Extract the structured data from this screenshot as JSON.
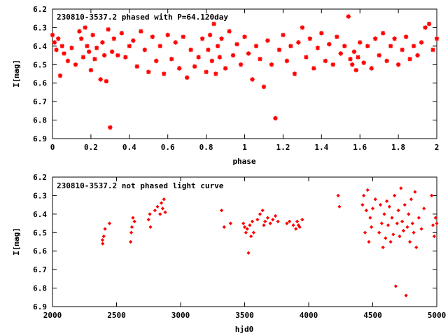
{
  "colors": {
    "points": "#ff0000",
    "frame": "#000000",
    "background": "#ffffff"
  },
  "chart_data": [
    {
      "type": "scatter",
      "title": "230810-3537.2 phased with P=64.120day",
      "xlabel": "phase",
      "ylabel": "I[mag]",
      "xlim": [
        0,
        2
      ],
      "ylim": [
        6.2,
        6.9
      ],
      "y_inverted": true,
      "grid": false,
      "marker": "asterisk",
      "x_ticks": [
        "0",
        "0.2",
        "0.4",
        "0.6",
        "0.8",
        "1",
        "1.2",
        "1.4",
        "1.6",
        "1.8",
        "2"
      ],
      "y_ticks": [
        "6.2",
        "6.3",
        "6.4",
        "6.5",
        "6.6",
        "6.7",
        "6.8",
        "6.9"
      ],
      "series": [
        {
          "color": "#ff0000",
          "points": [
            [
              0.0,
              6.34
            ],
            [
              0.01,
              6.38
            ],
            [
              0.02,
              6.42
            ],
            [
              0.03,
              6.36
            ],
            [
              0.04,
              6.56
            ],
            [
              0.05,
              6.4
            ],
            [
              0.06,
              6.44
            ],
            [
              0.08,
              6.48
            ],
            [
              0.1,
              6.41
            ],
            [
              0.12,
              6.5
            ],
            [
              0.14,
              6.32
            ],
            [
              0.15,
              6.36
            ],
            [
              0.16,
              6.46
            ],
            [
              0.17,
              6.3
            ],
            [
              0.18,
              6.4
            ],
            [
              0.19,
              6.43
            ],
            [
              0.2,
              6.53
            ],
            [
              0.21,
              6.34
            ],
            [
              0.22,
              6.47
            ],
            [
              0.23,
              6.41
            ],
            [
              0.25,
              6.58
            ],
            [
              0.26,
              6.38
            ],
            [
              0.27,
              6.45
            ],
            [
              0.28,
              6.59
            ],
            [
              0.29,
              6.31
            ],
            [
              0.3,
              6.84
            ],
            [
              0.31,
              6.43
            ],
            [
              0.32,
              6.36
            ],
            [
              0.34,
              6.45
            ],
            [
              0.36,
              6.33
            ],
            [
              0.38,
              6.46
            ],
            [
              0.4,
              6.4
            ],
            [
              0.42,
              6.37
            ],
            [
              0.44,
              6.51
            ],
            [
              0.46,
              6.32
            ],
            [
              0.48,
              6.42
            ],
            [
              0.5,
              6.54
            ],
            [
              0.52,
              6.35
            ],
            [
              0.54,
              6.48
            ],
            [
              0.56,
              6.4
            ],
            [
              0.58,
              6.55
            ],
            [
              0.6,
              6.34
            ],
            [
              0.62,
              6.47
            ],
            [
              0.64,
              6.38
            ],
            [
              0.66,
              6.52
            ],
            [
              0.68,
              6.35
            ],
            [
              0.7,
              6.57
            ],
            [
              0.72,
              6.42
            ],
            [
              0.74,
              6.51
            ],
            [
              0.76,
              6.46
            ],
            [
              0.78,
              6.36
            ],
            [
              0.8,
              6.54
            ],
            [
              0.81,
              6.42
            ],
            [
              0.82,
              6.34
            ],
            [
              0.83,
              6.48
            ],
            [
              0.84,
              6.28
            ],
            [
              0.85,
              6.55
            ],
            [
              0.86,
              6.4
            ],
            [
              0.87,
              6.46
            ],
            [
              0.88,
              6.36
            ],
            [
              0.9,
              6.52
            ],
            [
              0.92,
              6.32
            ],
            [
              0.94,
              6.45
            ],
            [
              0.96,
              6.39
            ],
            [
              0.98,
              6.5
            ],
            [
              1.0,
              6.35
            ],
            [
              1.02,
              6.44
            ],
            [
              1.04,
              6.58
            ],
            [
              1.06,
              6.4
            ],
            [
              1.08,
              6.47
            ],
            [
              1.1,
              6.62
            ],
            [
              1.12,
              6.37
            ],
            [
              1.14,
              6.5
            ],
            [
              1.16,
              6.79
            ],
            [
              1.18,
              6.42
            ],
            [
              1.2,
              6.34
            ],
            [
              1.22,
              6.48
            ],
            [
              1.24,
              6.4
            ],
            [
              1.26,
              6.55
            ],
            [
              1.28,
              6.38
            ],
            [
              1.3,
              6.3
            ],
            [
              1.32,
              6.46
            ],
            [
              1.34,
              6.36
            ],
            [
              1.36,
              6.52
            ],
            [
              1.38,
              6.41
            ],
            [
              1.4,
              6.33
            ],
            [
              1.42,
              6.48
            ],
            [
              1.44,
              6.39
            ],
            [
              1.46,
              6.5
            ],
            [
              1.48,
              6.35
            ],
            [
              1.5,
              6.44
            ],
            [
              1.52,
              6.4
            ],
            [
              1.54,
              6.24
            ],
            [
              1.55,
              6.47
            ],
            [
              1.56,
              6.5
            ],
            [
              1.57,
              6.43
            ],
            [
              1.58,
              6.53
            ],
            [
              1.59,
              6.46
            ],
            [
              1.6,
              6.38
            ],
            [
              1.62,
              6.49
            ],
            [
              1.64,
              6.4
            ],
            [
              1.66,
              6.52
            ],
            [
              1.68,
              6.36
            ],
            [
              1.7,
              6.45
            ],
            [
              1.72,
              6.33
            ],
            [
              1.74,
              6.48
            ],
            [
              1.76,
              6.4
            ],
            [
              1.78,
              6.36
            ],
            [
              1.8,
              6.5
            ],
            [
              1.82,
              6.42
            ],
            [
              1.84,
              6.35
            ],
            [
              1.86,
              6.47
            ],
            [
              1.88,
              6.4
            ],
            [
              1.9,
              6.45
            ],
            [
              1.92,
              6.38
            ],
            [
              1.94,
              6.3
            ],
            [
              1.96,
              6.28
            ],
            [
              1.98,
              6.42
            ],
            [
              2.0,
              6.36
            ]
          ]
        }
      ]
    },
    {
      "type": "scatter",
      "title": "230810-3537.2 not phased light curve",
      "xlabel": "hjd0",
      "ylabel": "I[mag]",
      "xlim": [
        2000,
        5000
      ],
      "ylim": [
        6.2,
        6.9
      ],
      "y_inverted": true,
      "grid": false,
      "marker": "diamond",
      "x_ticks": [
        "2000",
        "2500",
        "3000",
        "3500",
        "4000",
        "4500",
        "5000"
      ],
      "y_ticks": [
        "6.2",
        "6.3",
        "6.4",
        "6.5",
        "6.6",
        "6.7",
        "6.8",
        "6.9"
      ],
      "series": [
        {
          "color": "#ff0000",
          "points": [
            [
              2390,
              6.54
            ],
            [
              2392,
              6.56
            ],
            [
              2400,
              6.52
            ],
            [
              2410,
              6.48
            ],
            [
              2445,
              6.45
            ],
            [
              2610,
              6.55
            ],
            [
              2615,
              6.5
            ],
            [
              2620,
              6.47
            ],
            [
              2628,
              6.42
            ],
            [
              2640,
              6.44
            ],
            [
              2750,
              6.43
            ],
            [
              2760,
              6.4
            ],
            [
              2765,
              6.47
            ],
            [
              2800,
              6.38
            ],
            [
              2820,
              6.36
            ],
            [
              2840,
              6.4
            ],
            [
              2850,
              6.34
            ],
            [
              2860,
              6.37
            ],
            [
              2870,
              6.32
            ],
            [
              2880,
              6.39
            ],
            [
              3320,
              6.38
            ],
            [
              3340,
              6.47
            ],
            [
              3390,
              6.45
            ],
            [
              3490,
              6.45
            ],
            [
              3500,
              6.47
            ],
            [
              3510,
              6.5
            ],
            [
              3520,
              6.48
            ],
            [
              3530,
              6.61
            ],
            [
              3540,
              6.46
            ],
            [
              3550,
              6.52
            ],
            [
              3560,
              6.44
            ],
            [
              3570,
              6.5
            ],
            [
              3600,
              6.43
            ],
            [
              3620,
              6.4
            ],
            [
              3640,
              6.38
            ],
            [
              3650,
              6.46
            ],
            [
              3660,
              6.44
            ],
            [
              3680,
              6.42
            ],
            [
              3700,
              6.45
            ],
            [
              3720,
              6.43
            ],
            [
              3740,
              6.41
            ],
            [
              3760,
              6.44
            ],
            [
              3830,
              6.45
            ],
            [
              3850,
              6.44
            ],
            [
              3880,
              6.46
            ],
            [
              3900,
              6.48
            ],
            [
              3910,
              6.44
            ],
            [
              3920,
              6.46
            ],
            [
              3930,
              6.47
            ],
            [
              3950,
              6.43
            ],
            [
              4230,
              6.3
            ],
            [
              4240,
              6.36
            ],
            [
              4420,
              6.35
            ],
            [
              4430,
              6.3
            ],
            [
              4440,
              6.5
            ],
            [
              4450,
              6.38
            ],
            [
              4460,
              6.27
            ],
            [
              4470,
              6.55
            ],
            [
              4480,
              6.42
            ],
            [
              4490,
              6.47
            ],
            [
              4500,
              6.37
            ],
            [
              4520,
              6.32
            ],
            [
              4550,
              6.5
            ],
            [
              4560,
              6.35
            ],
            [
              4570,
              6.45
            ],
            [
              4580,
              6.58
            ],
            [
              4590,
              6.4
            ],
            [
              4600,
              6.53
            ],
            [
              4610,
              6.33
            ],
            [
              4620,
              6.46
            ],
            [
              4630,
              6.36
            ],
            [
              4640,
              6.55
            ],
            [
              4650,
              6.42
            ],
            [
              4660,
              6.51
            ],
            [
              4670,
              6.3
            ],
            [
              4680,
              6.79
            ],
            [
              4690,
              6.45
            ],
            [
              4700,
              6.38
            ],
            [
              4710,
              6.52
            ],
            [
              4720,
              6.26
            ],
            [
              4730,
              6.44
            ],
            [
              4740,
              6.49
            ],
            [
              4750,
              6.35
            ],
            [
              4760,
              6.84
            ],
            [
              4770,
              6.47
            ],
            [
              4780,
              6.4
            ],
            [
              4790,
              6.55
            ],
            [
              4800,
              6.32
            ],
            [
              4810,
              6.45
            ],
            [
              4820,
              6.5
            ],
            [
              4830,
              6.28
            ],
            [
              4840,
              6.58
            ],
            [
              4860,
              6.42
            ],
            [
              4880,
              6.48
            ],
            [
              4900,
              6.37
            ],
            [
              4960,
              6.3
            ],
            [
              4970,
              6.46
            ],
            [
              4980,
              6.52
            ],
            [
              4990,
              6.42
            ],
            [
              5000,
              6.45
            ]
          ]
        }
      ]
    }
  ]
}
